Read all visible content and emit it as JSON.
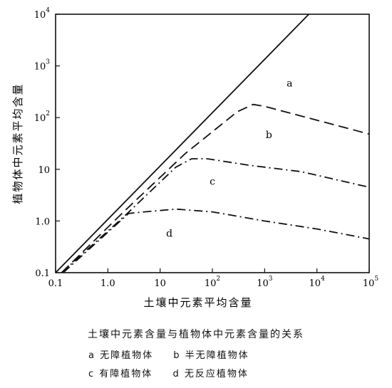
{
  "chart_data": {
    "type": "line",
    "xscale": "log",
    "yscale": "log",
    "xlim": [
      0.1,
      100000
    ],
    "ylim": [
      0.1,
      10000
    ],
    "xlabel": "土壤中元素平均含量",
    "ylabel": "植物体中元素平均含量",
    "x_ticks": [
      {
        "value": 0.1,
        "label": "0.1"
      },
      {
        "value": 1,
        "label": "1.0"
      },
      {
        "value": 10,
        "label": "10"
      },
      {
        "value": 100,
        "base": "10",
        "exp": "2"
      },
      {
        "value": 1000,
        "base": "10",
        "exp": "3"
      },
      {
        "value": 10000,
        "base": "10",
        "exp": "4"
      },
      {
        "value": 100000,
        "base": "10",
        "exp": "5"
      }
    ],
    "y_ticks": [
      {
        "value": 0.1,
        "label": "0.1"
      },
      {
        "value": 1,
        "label": "1.0"
      },
      {
        "value": 10,
        "label": "10"
      },
      {
        "value": 100,
        "base": "10",
        "exp": "2"
      },
      {
        "value": 1000,
        "base": "10",
        "exp": "3"
      },
      {
        "value": 10000,
        "base": "10",
        "exp": "4"
      }
    ],
    "series": [
      {
        "name": "a",
        "style": "solid",
        "x": [
          0.1,
          7000
        ],
        "y": [
          0.1,
          10000
        ]
      },
      {
        "name": "b",
        "style": "dashed",
        "x": [
          0.13,
          2,
          30,
          300,
          600,
          1000,
          100000
        ],
        "y": [
          0.1,
          1.5,
          20,
          130,
          180,
          165,
          48
        ]
      },
      {
        "name": "c",
        "style": "dashdot",
        "x": [
          0.13,
          2,
          20,
          40,
          80,
          500,
          5000,
          100000
        ],
        "y": [
          0.1,
          1.2,
          11,
          16,
          16,
          12,
          9,
          4.5
        ]
      },
      {
        "name": "d",
        "style": "dashdot",
        "x": [
          0.14,
          2.5,
          5,
          20,
          100,
          1000,
          10000,
          100000
        ],
        "y": [
          0.1,
          1.4,
          1.5,
          1.7,
          1.5,
          1.0,
          0.7,
          0.45
        ]
      }
    ]
  },
  "caption": "土壤中元素含量与植物体中元素含量的关系",
  "legend": [
    {
      "key": "a",
      "label": "无障植物体"
    },
    {
      "key": "b",
      "label": "半无障植物体"
    },
    {
      "key": "c",
      "label": "有障植物体"
    },
    {
      "key": "d",
      "label": "无反应植物体"
    }
  ]
}
